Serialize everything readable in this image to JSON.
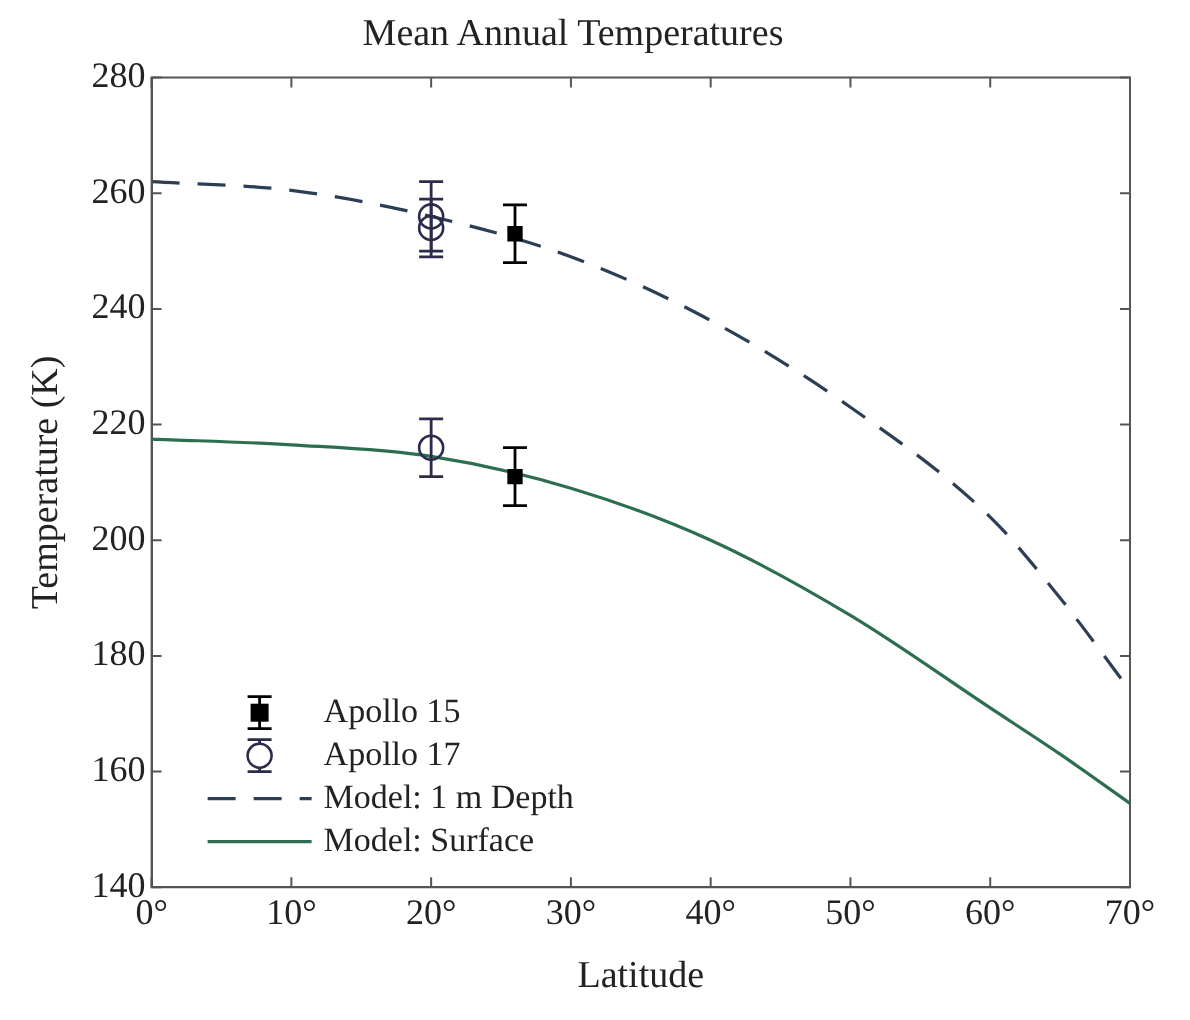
{
  "chart_data": {
    "type": "scatter",
    "title": "Mean Annual Temperatures",
    "xlabel": "Latitude",
    "ylabel": "Temperature (K)",
    "xlim": [
      0,
      70
    ],
    "xticks": [
      {
        "value": 0,
        "label": "0°"
      },
      {
        "value": 10,
        "label": "10°"
      },
      {
        "value": 20,
        "label": "20°"
      },
      {
        "value": 30,
        "label": "30°"
      },
      {
        "value": 40,
        "label": "40°"
      },
      {
        "value": 50,
        "label": "50°"
      },
      {
        "value": 60,
        "label": "60°"
      },
      {
        "value": 70,
        "label": "70°"
      }
    ],
    "ylim": [
      140,
      280
    ],
    "yticks": [
      140,
      160,
      180,
      200,
      220,
      240,
      260,
      280
    ],
    "legend": "bottom left",
    "series": [
      {
        "name": "Apollo 15",
        "marker": "square",
        "color": "#000000",
        "x": [
          26,
          26
        ],
        "values": [
          253,
          211
        ],
        "errors": [
          5,
          5
        ]
      },
      {
        "name": "Apollo 17",
        "marker": "circle",
        "color": "#2b2b4a",
        "x": [
          20,
          20,
          20
        ],
        "values": [
          256,
          254,
          216
        ],
        "errors": [
          6,
          5,
          5
        ]
      },
      {
        "name": "Model: 1 m Depth",
        "type": "line",
        "marker": "none",
        "line_style": "dashed",
        "color": "#2c3e55",
        "x": [
          0,
          10,
          20,
          30,
          40,
          50,
          60,
          65,
          70
        ],
        "values": [
          262,
          260.5,
          256,
          249,
          238,
          223,
          204,
          190,
          174
        ]
      },
      {
        "name": "Model: Surface",
        "type": "line",
        "marker": "none",
        "line_style": "solid",
        "color": "#2e6e50",
        "x": [
          0,
          10,
          20,
          30,
          40,
          50,
          60,
          65,
          70
        ],
        "values": [
          217.5,
          216.5,
          214.5,
          209,
          200,
          187,
          171,
          163,
          154.5
        ]
      }
    ]
  }
}
